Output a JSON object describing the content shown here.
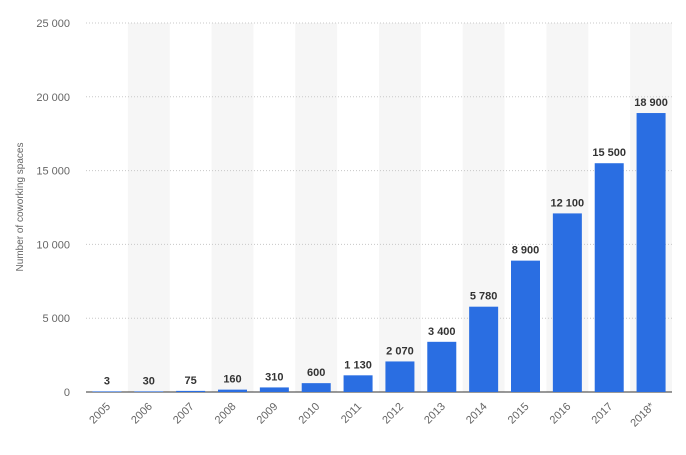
{
  "chart_data": {
    "type": "bar",
    "categories": [
      "2005",
      "2006",
      "2007",
      "2008",
      "2009",
      "2010",
      "2011",
      "2012",
      "2013",
      "2014",
      "2015",
      "2016",
      "2017",
      "2018*"
    ],
    "series": [
      {
        "values": [
          3,
          30,
          75,
          160,
          310,
          600,
          1130,
          2070,
          3400,
          5780,
          8900,
          12100,
          15500,
          18900
        ]
      }
    ],
    "value_labels": [
      "3",
      "30",
      "75",
      "160",
      "310",
      "600",
      "1 130",
      "2 070",
      "3 400",
      "5 780",
      "8 900",
      "12 100",
      "15 500",
      "18 900"
    ],
    "ylabel": "Number of coworking spaces",
    "xlabel": "",
    "ylim": [
      0,
      25000
    ],
    "yticks": [
      0,
      5000,
      10000,
      15000,
      20000,
      25000
    ],
    "ytick_labels": [
      "0",
      "5 000",
      "10 000",
      "15 000",
      "20 000",
      "25 000"
    ],
    "grid": true,
    "bar_color": "#2a6ee2",
    "alternate_band_color": "#f6f6f6",
    "grid_color": "#c8c8c8"
  }
}
